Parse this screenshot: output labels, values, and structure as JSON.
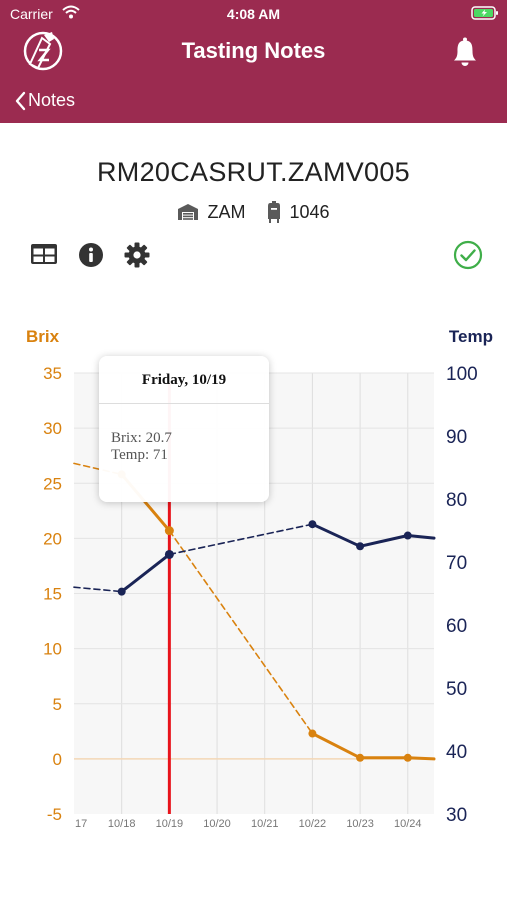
{
  "status_bar": {
    "carrier": "Carrier",
    "time": "4:08 AM"
  },
  "nav": {
    "title": "Tasting Notes",
    "back_label": "Notes"
  },
  "block": {
    "title": "RM20CASRUT.ZAMV005",
    "facility": "ZAM",
    "vessel": "1046"
  },
  "icons": {
    "logo": "app-logo",
    "bell": "bell-icon",
    "back": "chevron-left-icon",
    "facility": "warehouse-icon",
    "vessel": "tank-icon",
    "table": "table-icon",
    "info": "info-icon",
    "settings": "gear-icon",
    "status": "check-circle-icon"
  },
  "colors": {
    "brand": "#9b2b50",
    "brix": "#d9820f",
    "temp": "#1a2456",
    "cursor": "#e8131b",
    "ok": "#3fae49"
  },
  "tooltip": {
    "title": "Friday, 10/19",
    "brix_line": "Brix: 20.7",
    "temp_line": "Temp: 71"
  },
  "chart_data": {
    "type": "line",
    "left_axis_title": "Brix",
    "right_axis_title": "Temp",
    "y_left": {
      "min": -5,
      "max": 35,
      "ticks": [
        "35",
        "30",
        "25",
        "20",
        "15",
        "10",
        "5",
        "0",
        "-5"
      ]
    },
    "y_right": {
      "min": 30,
      "max": 100,
      "ticks": [
        "100",
        "90",
        "80",
        "70",
        "60",
        "50",
        "40",
        "30"
      ]
    },
    "x_labels": [
      "17",
      "10/18",
      "10/19",
      "10/20",
      "10/21",
      "10/22",
      "10/23",
      "10/24"
    ],
    "x_label_days": [
      17,
      18,
      19,
      20,
      21,
      22,
      23,
      24
    ],
    "x_range": [
      17,
      24.55
    ],
    "selected_day": 19,
    "grid": true,
    "series": [
      {
        "name": "Brix",
        "axis": "left",
        "segments": [
          {
            "style": "dashed",
            "points": [
              [
                17,
                26.8
              ],
              [
                18,
                25.8
              ],
              [
                19,
                20.7
              ]
            ]
          },
          {
            "style": "dashed",
            "points": [
              [
                19,
                20.7
              ],
              [
                22,
                2.3
              ]
            ]
          },
          {
            "style": "solid",
            "points": [
              [
                18,
                25.8
              ],
              [
                19,
                20.7
              ]
            ]
          },
          {
            "style": "solid",
            "points": [
              [
                22,
                2.3
              ],
              [
                23,
                0.1
              ],
              [
                24,
                0.1
              ],
              [
                24.55,
                0.0
              ]
            ]
          }
        ],
        "markers": [
          [
            18,
            25.8
          ],
          [
            19,
            20.7
          ],
          [
            22,
            2.3
          ],
          [
            23,
            0.1
          ],
          [
            24,
            0.1
          ]
        ]
      },
      {
        "name": "Temp",
        "axis": "right",
        "segments": [
          {
            "style": "dashed",
            "points": [
              [
                17,
                66.0
              ],
              [
                18,
                65.3
              ]
            ]
          },
          {
            "style": "solid",
            "points": [
              [
                18,
                65.3
              ],
              [
                19,
                71.2
              ]
            ]
          },
          {
            "style": "dashed",
            "points": [
              [
                19,
                71.2
              ],
              [
                22,
                76.0
              ]
            ]
          },
          {
            "style": "solid",
            "points": [
              [
                22,
                76.0
              ],
              [
                23,
                72.5
              ],
              [
                24,
                74.2
              ],
              [
                24.55,
                73.8
              ]
            ]
          }
        ],
        "markers": [
          [
            18,
            65.3
          ],
          [
            19,
            71.2
          ],
          [
            22,
            76.0
          ],
          [
            23,
            72.5
          ],
          [
            24,
            74.2
          ]
        ]
      }
    ]
  }
}
